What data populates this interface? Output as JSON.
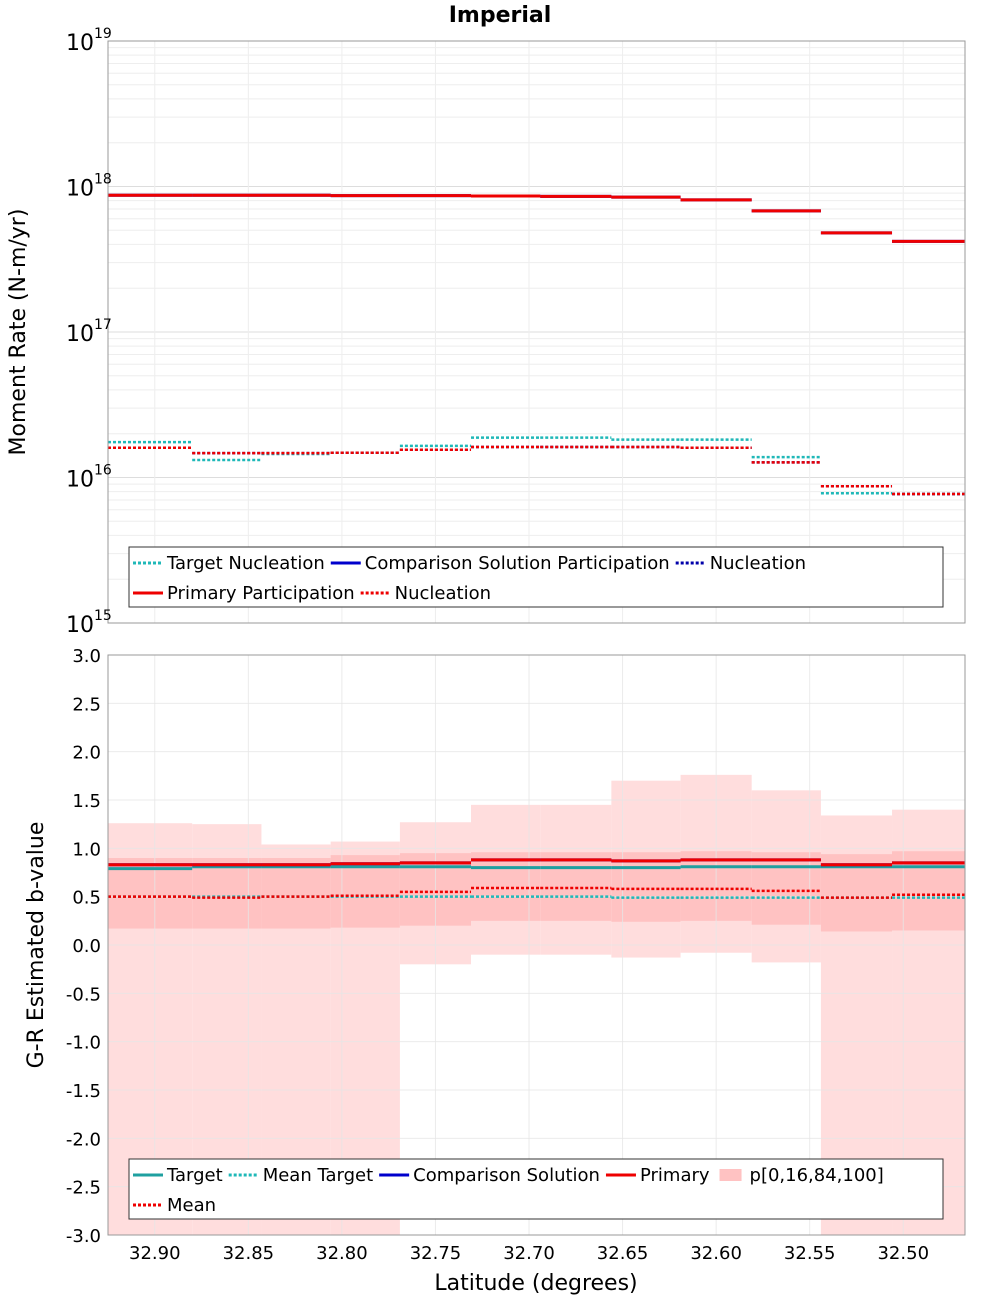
{
  "figure": {
    "title": "Imperial"
  },
  "chart_data": [
    {
      "type": "line",
      "title": "Imperial",
      "ylabel": "Moment Rate (N-m/yr)",
      "xlabel": "",
      "yscale": "log",
      "ylim": [
        1000000000000000.0,
        1e+19
      ],
      "xlim": [
        32.925,
        32.467
      ],
      "x_reversed": true,
      "grid": true,
      "yticks": [
        {
          "base": "10",
          "exp": "15",
          "value": 1000000000000000.0
        },
        {
          "base": "10",
          "exp": "16",
          "value": 1e+16
        },
        {
          "base": "10",
          "exp": "17",
          "value": 1e+17
        },
        {
          "base": "10",
          "exp": "18",
          "value": 1e+18
        },
        {
          "base": "10",
          "exp": "19",
          "value": 1e+19
        }
      ],
      "bin_edges": [
        32.925,
        32.88,
        32.843,
        32.806,
        32.769,
        32.731,
        32.694,
        32.656,
        32.619,
        32.581,
        32.544,
        32.506,
        32.467
      ],
      "series": [
        {
          "name": "Target Nucleation",
          "style": "dotted",
          "color": "#1fb8b8",
          "values": [
            1.75e+16,
            1.32e+16,
            1.45e+16,
            1.48e+16,
            1.65e+16,
            1.88e+16,
            1.88e+16,
            1.82e+16,
            1.82e+16,
            1.38e+16,
            7800000000000000.0,
            7700000000000000.0
          ]
        },
        {
          "name": "Comparison Solution Participation",
          "style": "solid",
          "color": "#0000cc",
          "values": [
            8.7e+17,
            8.7e+17,
            8.7e+17,
            8.65e+17,
            8.65e+17,
            8.6e+17,
            8.55e+17,
            8.45e+17,
            8.1e+17,
            6.8e+17,
            4.8e+17,
            4.2e+17
          ]
        },
        {
          "name": "Nucleation",
          "style": "dotted",
          "color": "#0000aa",
          "values": [
            1.6e+16,
            1.47e+16,
            1.47e+16,
            1.48e+16,
            1.55e+16,
            1.62e+16,
            1.62e+16,
            1.62e+16,
            1.6e+16,
            1.27e+16,
            8700000000000000.0,
            7700000000000000.0
          ]
        },
        {
          "name": "Primary Participation",
          "style": "solid",
          "color": "#ee0000",
          "values": [
            8.7e+17,
            8.7e+17,
            8.7e+17,
            8.65e+17,
            8.65e+17,
            8.6e+17,
            8.55e+17,
            8.45e+17,
            8.1e+17,
            6.8e+17,
            4.8e+17,
            4.2e+17
          ]
        },
        {
          "name": "Nucleation",
          "style": "dotted",
          "color": "#ee0000",
          "values": [
            1.6e+16,
            1.47e+16,
            1.47e+16,
            1.48e+16,
            1.55e+16,
            1.62e+16,
            1.62e+16,
            1.62e+16,
            1.6e+16,
            1.27e+16,
            8700000000000000.0,
            7700000000000000.0
          ]
        }
      ],
      "legend": {
        "placement": "bottom",
        "rows": [
          [
            {
              "label": "Target Nucleation",
              "series": 0
            },
            {
              "label": "Comparison Solution Participation",
              "series": 1
            },
            {
              "label": "Nucleation",
              "series": 2
            }
          ],
          [
            {
              "label": "Primary Participation",
              "series": 3
            },
            {
              "label": "Nucleation",
              "series": 4
            }
          ]
        ]
      }
    },
    {
      "type": "line",
      "title": "",
      "xlabel": "Latitude (degrees)",
      "ylabel": "G-R Estimated b-value",
      "ylim": [
        -3.0,
        3.0
      ],
      "xlim": [
        32.925,
        32.467
      ],
      "x_reversed": true,
      "grid": true,
      "yticks": [
        "3.0",
        "2.5",
        "2.0",
        "1.5",
        "1.0",
        "0.5",
        "0.0",
        "-0.5",
        "-1.0",
        "-1.5",
        "-2.0",
        "-2.5",
        "-3.0"
      ],
      "ytick_values": [
        3.0,
        2.5,
        2.0,
        1.5,
        1.0,
        0.5,
        0.0,
        -0.5,
        -1.0,
        -1.5,
        -2.0,
        -2.5,
        -3.0
      ],
      "xticks": [
        "32.90",
        "32.85",
        "32.80",
        "32.75",
        "32.70",
        "32.65",
        "32.60",
        "32.55",
        "32.50"
      ],
      "xtick_values": [
        32.9,
        32.85,
        32.8,
        32.75,
        32.7,
        32.65,
        32.6,
        32.55,
        32.5
      ],
      "bin_edges": [
        32.925,
        32.88,
        32.843,
        32.806,
        32.769,
        32.731,
        32.694,
        32.656,
        32.619,
        32.581,
        32.544,
        32.506,
        32.467
      ],
      "bands": {
        "name": "p[0,16,84,100]",
        "color": "#ff9999",
        "p0": [
          -3.0,
          -3.0,
          -3.0,
          -3.0,
          -0.2,
          -0.1,
          -0.1,
          -0.13,
          -0.08,
          -0.18,
          -3.0,
          -3.0
        ],
        "p16": [
          0.17,
          0.17,
          0.17,
          0.18,
          0.2,
          0.25,
          0.25,
          0.24,
          0.25,
          0.21,
          0.14,
          0.15
        ],
        "p84": [
          0.9,
          0.9,
          0.9,
          0.93,
          0.95,
          0.96,
          0.96,
          0.96,
          0.97,
          0.96,
          0.94,
          0.97
        ],
        "p100": [
          1.26,
          1.25,
          1.04,
          1.07,
          1.27,
          1.45,
          1.45,
          1.7,
          1.76,
          1.6,
          1.34,
          1.4
        ]
      },
      "series": [
        {
          "name": "Target",
          "style": "solid",
          "color": "#1fa0a0",
          "values": [
            0.79,
            0.81,
            0.81,
            0.81,
            0.81,
            0.8,
            0.8,
            0.8,
            0.81,
            0.81,
            0.81,
            0.81
          ]
        },
        {
          "name": "Mean Target",
          "style": "dotted",
          "color": "#1fb8b8",
          "values": [
            0.5,
            0.5,
            0.5,
            0.5,
            0.5,
            0.5,
            0.5,
            0.49,
            0.49,
            0.49,
            0.49,
            0.49
          ]
        },
        {
          "name": "Comparison Solution",
          "style": "solid",
          "color": "#0000cc",
          "values": [
            0.83,
            0.83,
            0.83,
            0.84,
            0.85,
            0.88,
            0.88,
            0.87,
            0.88,
            0.88,
            0.83,
            0.85
          ]
        },
        {
          "name": "Primary",
          "style": "solid",
          "color": "#ee0000",
          "values": [
            0.83,
            0.83,
            0.83,
            0.84,
            0.85,
            0.88,
            0.88,
            0.87,
            0.88,
            0.88,
            0.83,
            0.85
          ]
        },
        {
          "name": "Mean",
          "style": "dotted",
          "color": "#ee0000",
          "values": [
            0.5,
            0.49,
            0.5,
            0.51,
            0.55,
            0.59,
            0.59,
            0.58,
            0.58,
            0.56,
            0.49,
            0.52
          ]
        }
      ],
      "legend": {
        "placement": "bottom",
        "rows": [
          [
            {
              "label": "Target",
              "series": 0
            },
            {
              "label": "Mean Target",
              "series": 1
            },
            {
              "label": "Comparison Solution",
              "series": 2
            },
            {
              "label": "Primary",
              "series": 3
            },
            {
              "label": "p[0,16,84,100]",
              "band": true
            }
          ],
          [
            {
              "label": "Mean",
              "series": 4
            }
          ]
        ]
      }
    }
  ]
}
